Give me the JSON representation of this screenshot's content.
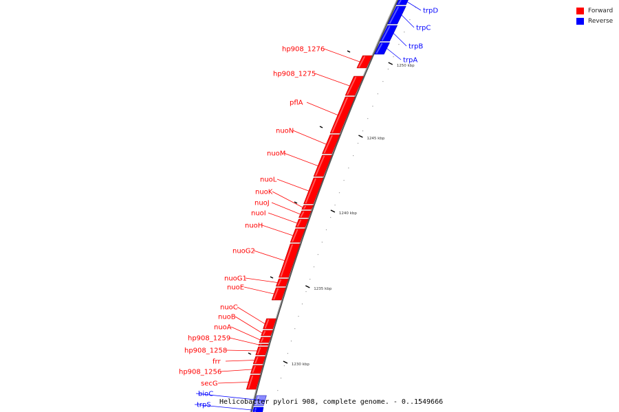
{
  "legend": {
    "forward_label": "Forward",
    "reverse_label": "Reverse",
    "forward_color": "#ff0000",
    "reverse_color": "#0000ff"
  },
  "caption": "Helicobacter pylori 908, complete genome. - 0..1549666",
  "scale_ticks": [
    "1250 kbp",
    "1245 kbp",
    "1240 kbp",
    "1235 kbp",
    "1230 kbp"
  ],
  "genes": [
    {
      "name": "trpD",
      "strand": "reverse"
    },
    {
      "name": "trpC",
      "strand": "reverse"
    },
    {
      "name": "trpB",
      "strand": "reverse"
    },
    {
      "name": "trpA",
      "strand": "reverse"
    },
    {
      "name": "hp908_1276",
      "strand": "forward"
    },
    {
      "name": "hp908_1275",
      "strand": "forward"
    },
    {
      "name": "pflA",
      "strand": "forward"
    },
    {
      "name": "nuoN",
      "strand": "forward"
    },
    {
      "name": "nuoM",
      "strand": "forward"
    },
    {
      "name": "nuoL",
      "strand": "forward"
    },
    {
      "name": "nuoK",
      "strand": "forward"
    },
    {
      "name": "nuoJ",
      "strand": "forward"
    },
    {
      "name": "nuoI",
      "strand": "forward"
    },
    {
      "name": "nuoH",
      "strand": "forward"
    },
    {
      "name": "nuoG2",
      "strand": "forward"
    },
    {
      "name": "nuoG1",
      "strand": "forward"
    },
    {
      "name": "nuoE",
      "strand": "forward"
    },
    {
      "name": "nuoC",
      "strand": "forward"
    },
    {
      "name": "nuoB",
      "strand": "forward"
    },
    {
      "name": "nuoA",
      "strand": "forward"
    },
    {
      "name": "hp908_1259",
      "strand": "forward"
    },
    {
      "name": "hp908_1258",
      "strand": "forward"
    },
    {
      "name": "frr",
      "strand": "forward"
    },
    {
      "name": "hp908_1256",
      "strand": "forward"
    },
    {
      "name": "secG",
      "strand": "forward"
    },
    {
      "name": "bioC",
      "strand": "reverse"
    },
    {
      "name": "trpS",
      "strand": "reverse"
    }
  ]
}
